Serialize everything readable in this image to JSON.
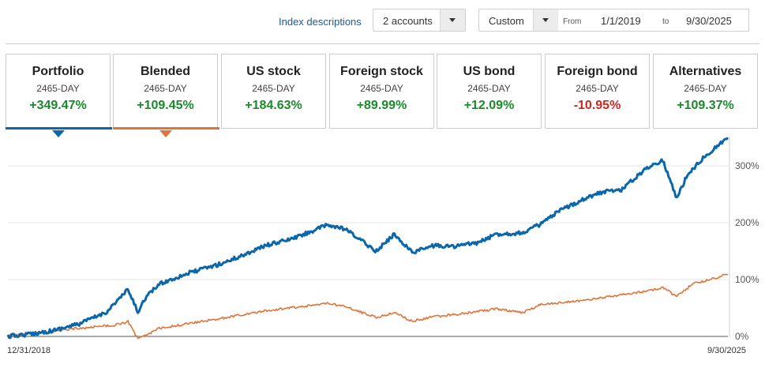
{
  "toolbar": {
    "index_link": "Index descriptions",
    "accounts_select": "2 accounts",
    "range_select": "Custom",
    "from_label": "From",
    "from_value": "1/1/2019",
    "to_label": "to",
    "to_value": "9/30/2025"
  },
  "colors": {
    "portfolio": "#0b67ab",
    "blended": "#e0733a",
    "positive": "#1a8a2a",
    "negative": "#d0261f"
  },
  "cards": [
    {
      "name": "Portfolio",
      "period": "2465-DAY",
      "change": "+349.47%",
      "selected": true,
      "color": "#0b67ab"
    },
    {
      "name": "Blended",
      "period": "2465-DAY",
      "change": "+109.45%",
      "selected": true,
      "color": "#e0733a"
    },
    {
      "name": "US stock",
      "period": "2465-DAY",
      "change": "+184.63%"
    },
    {
      "name": "Foreign stock",
      "period": "2465-DAY",
      "change": "+89.99%"
    },
    {
      "name": "US bond",
      "period": "2465-DAY",
      "change": "+12.09%"
    },
    {
      "name": "Foreign bond",
      "period": "2465-DAY",
      "change": "-10.95%"
    },
    {
      "name": "Alternatives",
      "period": "2465-DAY",
      "change": "+109.37%"
    }
  ],
  "chart_data": {
    "type": "line",
    "x_start_label": "12/31/2018",
    "x_end_label": "9/30/2025",
    "yticks": [
      0,
      100,
      200,
      300
    ],
    "ytick_labels": [
      "0%",
      "100%",
      "200%",
      "300%"
    ],
    "ylim": [
      -10,
      350
    ],
    "grid": true,
    "series": [
      {
        "name": "Portfolio",
        "color": "#0b67ab",
        "points": [
          [
            "2018-12-31",
            0
          ],
          [
            "2019-03-15",
            4
          ],
          [
            "2019-06-01",
            10
          ],
          [
            "2019-09-01",
            22
          ],
          [
            "2019-12-01",
            42
          ],
          [
            "2020-02-15",
            82
          ],
          [
            "2020-03-20",
            43
          ],
          [
            "2020-04-15",
            68
          ],
          [
            "2020-06-01",
            92
          ],
          [
            "2020-09-01",
            110
          ],
          [
            "2020-12-31",
            128
          ],
          [
            "2021-03-01",
            140
          ],
          [
            "2021-06-01",
            160
          ],
          [
            "2021-09-01",
            172
          ],
          [
            "2021-12-31",
            196
          ],
          [
            "2022-03-01",
            188
          ],
          [
            "2022-06-15",
            150
          ],
          [
            "2022-08-15",
            180
          ],
          [
            "2022-10-15",
            148
          ],
          [
            "2022-12-31",
            160
          ],
          [
            "2023-03-01",
            158
          ],
          [
            "2023-06-01",
            165
          ],
          [
            "2023-07-31",
            180
          ],
          [
            "2023-10-27",
            182
          ],
          [
            "2023-12-31",
            198
          ],
          [
            "2024-03-01",
            220
          ],
          [
            "2024-06-01",
            244
          ],
          [
            "2024-08-05",
            255
          ],
          [
            "2024-09-30",
            258
          ],
          [
            "2024-12-31",
            298
          ],
          [
            "2025-02-19",
            310
          ],
          [
            "2025-04-08",
            243
          ],
          [
            "2025-05-15",
            285
          ],
          [
            "2025-07-15",
            318
          ],
          [
            "2025-09-30",
            349.47
          ]
        ]
      },
      {
        "name": "Blended",
        "color": "#e0733a",
        "points": [
          [
            "2018-12-31",
            0
          ],
          [
            "2019-06-01",
            10
          ],
          [
            "2019-12-31",
            20
          ],
          [
            "2020-02-15",
            26
          ],
          [
            "2020-03-20",
            -5
          ],
          [
            "2020-06-01",
            14
          ],
          [
            "2020-12-31",
            32
          ],
          [
            "2021-06-01",
            45
          ],
          [
            "2021-12-31",
            58
          ],
          [
            "2022-03-01",
            52
          ],
          [
            "2022-06-15",
            33
          ],
          [
            "2022-08-15",
            42
          ],
          [
            "2022-10-15",
            27
          ],
          [
            "2022-12-31",
            35
          ],
          [
            "2023-03-01",
            38
          ],
          [
            "2023-07-31",
            48
          ],
          [
            "2023-10-27",
            42
          ],
          [
            "2023-12-31",
            56
          ],
          [
            "2024-06-01",
            64
          ],
          [
            "2024-12-31",
            80
          ],
          [
            "2025-02-19",
            86
          ],
          [
            "2025-04-08",
            70
          ],
          [
            "2025-06-01",
            92
          ],
          [
            "2025-09-30",
            109.45
          ]
        ]
      }
    ]
  }
}
